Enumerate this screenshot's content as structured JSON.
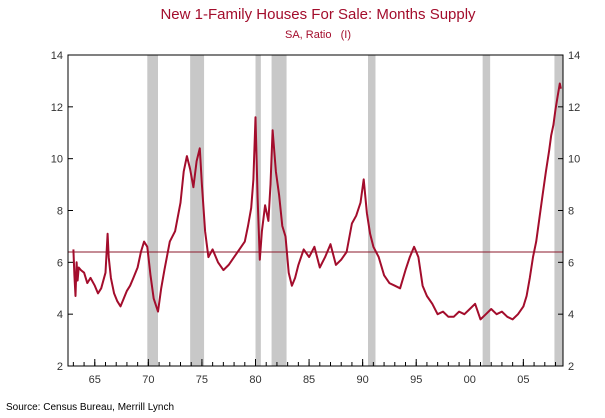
{
  "chart_data": {
    "type": "line",
    "title": "New 1-Family Houses For Sale: Months Supply",
    "subtitle": "SA, Ratio   (I)",
    "source": "Source: Census Bureau, Merrill Lynch",
    "xlim": [
      1962.5,
      2008.7
    ],
    "ylim": [
      2,
      14
    ],
    "x_ticks": [
      1965,
      1970,
      1975,
      1980,
      1985,
      1990,
      1995,
      2000,
      2005
    ],
    "x_tick_labels": [
      "65",
      "70",
      "75",
      "80",
      "85",
      "90",
      "95",
      "00",
      "05"
    ],
    "y_ticks": [
      2,
      4,
      6,
      8,
      10,
      12,
      14
    ],
    "y_tick_labels": [
      "2",
      "4",
      "6",
      "8",
      "10",
      "12",
      "14"
    ],
    "y_axes": [
      "left",
      "right"
    ],
    "grid": false,
    "reference_line": {
      "y": 6.4,
      "color": "#8b1a2b"
    },
    "recessions": [
      {
        "start": 1969.9,
        "end": 1970.9
      },
      {
        "start": 1973.9,
        "end": 1975.2
      },
      {
        "start": 1980.0,
        "end": 1980.5
      },
      {
        "start": 1981.5,
        "end": 1982.9
      },
      {
        "start": 1990.5,
        "end": 1991.2
      },
      {
        "start": 2001.2,
        "end": 2001.9
      },
      {
        "start": 2007.9,
        "end": 2008.7
      }
    ],
    "recession_color": "#c8c8c8",
    "line_color": "#a30d2c",
    "series": [
      {
        "x": [
          1963.0,
          1963.1,
          1963.2,
          1963.3,
          1963.4,
          1963.5,
          1963.7,
          1964.0,
          1964.3,
          1964.6,
          1965.0,
          1965.3,
          1965.6,
          1966.0,
          1966.2,
          1966.3,
          1966.5,
          1966.8,
          1967.1,
          1967.4,
          1967.7,
          1968.0,
          1968.3,
          1968.6,
          1969.0,
          1969.3,
          1969.6,
          1969.9,
          1970.2,
          1970.5,
          1970.9,
          1971.2,
          1971.5,
          1972.0,
          1972.5,
          1973.0,
          1973.3,
          1973.6,
          1973.9,
          1974.2,
          1974.5,
          1974.8,
          1975.0,
          1975.3,
          1975.6,
          1976.0,
          1976.5,
          1977.0,
          1977.5,
          1978.0,
          1978.5,
          1979.0,
          1979.3,
          1979.6,
          1979.8,
          1980.0,
          1980.2,
          1980.4,
          1980.6,
          1980.9,
          1981.2,
          1981.4,
          1981.6,
          1981.9,
          1982.2,
          1982.5,
          1982.8,
          1983.1,
          1983.4,
          1983.7,
          1984.0,
          1984.5,
          1985.0,
          1985.5,
          1986.0,
          1986.5,
          1987.0,
          1987.5,
          1988.0,
          1988.5,
          1989.0,
          1989.4,
          1989.8,
          1990.1,
          1990.4,
          1990.7,
          1991.0,
          1991.5,
          1992.0,
          1992.5,
          1993.0,
          1993.5,
          1994.0,
          1994.4,
          1994.8,
          1995.2,
          1995.6,
          1996.0,
          1996.5,
          1997.0,
          1997.5,
          1998.0,
          1998.5,
          1999.0,
          1999.5,
          2000.0,
          2000.5,
          2001.0,
          2001.5,
          2002.0,
          2002.5,
          2003.0,
          2003.5,
          2004.0,
          2004.5,
          2005.0,
          2005.3,
          2005.6,
          2005.9,
          2006.2,
          2006.5,
          2006.8,
          2007.1,
          2007.4,
          2007.6,
          2007.8,
          2008.0,
          2008.2,
          2008.4,
          2008.5
        ],
        "values": [
          6.5,
          5.5,
          4.7,
          6.0,
          5.3,
          5.8,
          5.7,
          5.6,
          5.2,
          5.4,
          5.1,
          4.8,
          5.0,
          5.6,
          7.1,
          6.2,
          5.4,
          4.8,
          4.5,
          4.3,
          4.6,
          4.9,
          5.1,
          5.4,
          5.8,
          6.4,
          6.8,
          6.6,
          5.5,
          4.6,
          4.1,
          5.0,
          5.7,
          6.8,
          7.2,
          8.3,
          9.5,
          10.1,
          9.6,
          8.9,
          9.9,
          10.4,
          9.0,
          7.2,
          6.2,
          6.5,
          6.0,
          5.7,
          5.9,
          6.2,
          6.5,
          6.8,
          7.4,
          8.1,
          9.2,
          11.6,
          8.5,
          6.1,
          7.2,
          8.2,
          7.6,
          9.0,
          11.1,
          9.5,
          8.6,
          7.4,
          7.0,
          5.6,
          5.1,
          5.4,
          5.9,
          6.5,
          6.2,
          6.6,
          5.8,
          6.2,
          6.7,
          5.9,
          6.1,
          6.4,
          7.5,
          7.8,
          8.3,
          9.2,
          7.9,
          7.1,
          6.6,
          6.2,
          5.5,
          5.2,
          5.1,
          5.0,
          5.7,
          6.2,
          6.6,
          6.2,
          5.1,
          4.7,
          4.4,
          4.0,
          4.1,
          3.9,
          3.9,
          4.1,
          4.0,
          4.2,
          4.4,
          3.8,
          4.0,
          4.2,
          4.0,
          4.1,
          3.9,
          3.8,
          4.0,
          4.3,
          4.7,
          5.4,
          6.2,
          6.8,
          7.7,
          8.6,
          9.5,
          10.3,
          10.9,
          11.3,
          11.9,
          12.4,
          12.9,
          12.7
        ]
      }
    ]
  }
}
